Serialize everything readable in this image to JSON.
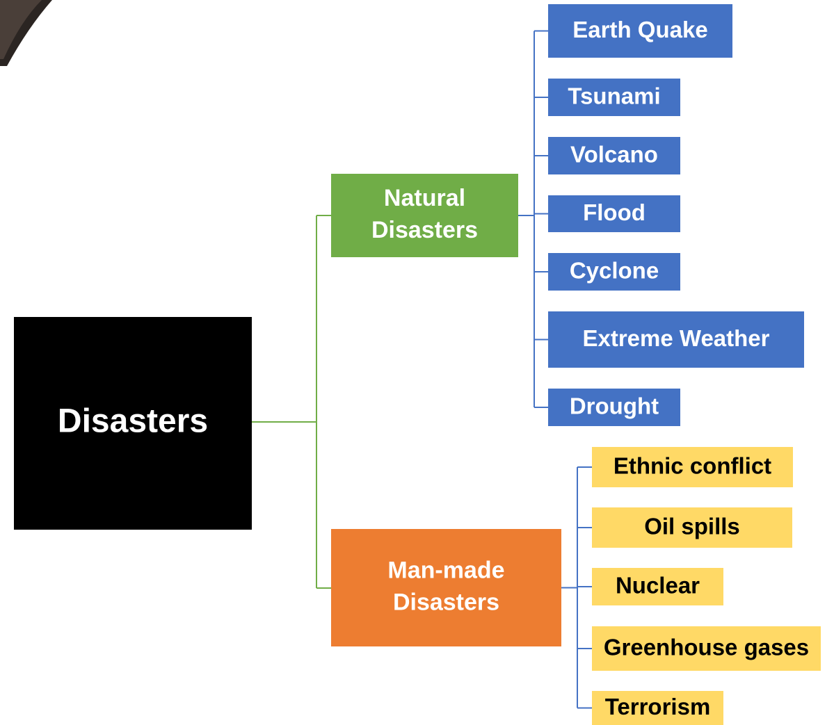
{
  "root": {
    "label": "Disasters"
  },
  "branches": [
    {
      "label_lines": [
        "Natural",
        "Disasters"
      ],
      "children": [
        "Earth Quake",
        "Tsunami",
        "Volcano",
        "Flood",
        "Cyclone",
        "Extreme Weather",
        "Drought"
      ]
    },
    {
      "label_lines": [
        "Man-made",
        "Disasters"
      ],
      "children": [
        "Ethnic conflict",
        "Oil spills",
        "Nuclear",
        "Greenhouse gases",
        "Terrorism"
      ]
    }
  ]
}
